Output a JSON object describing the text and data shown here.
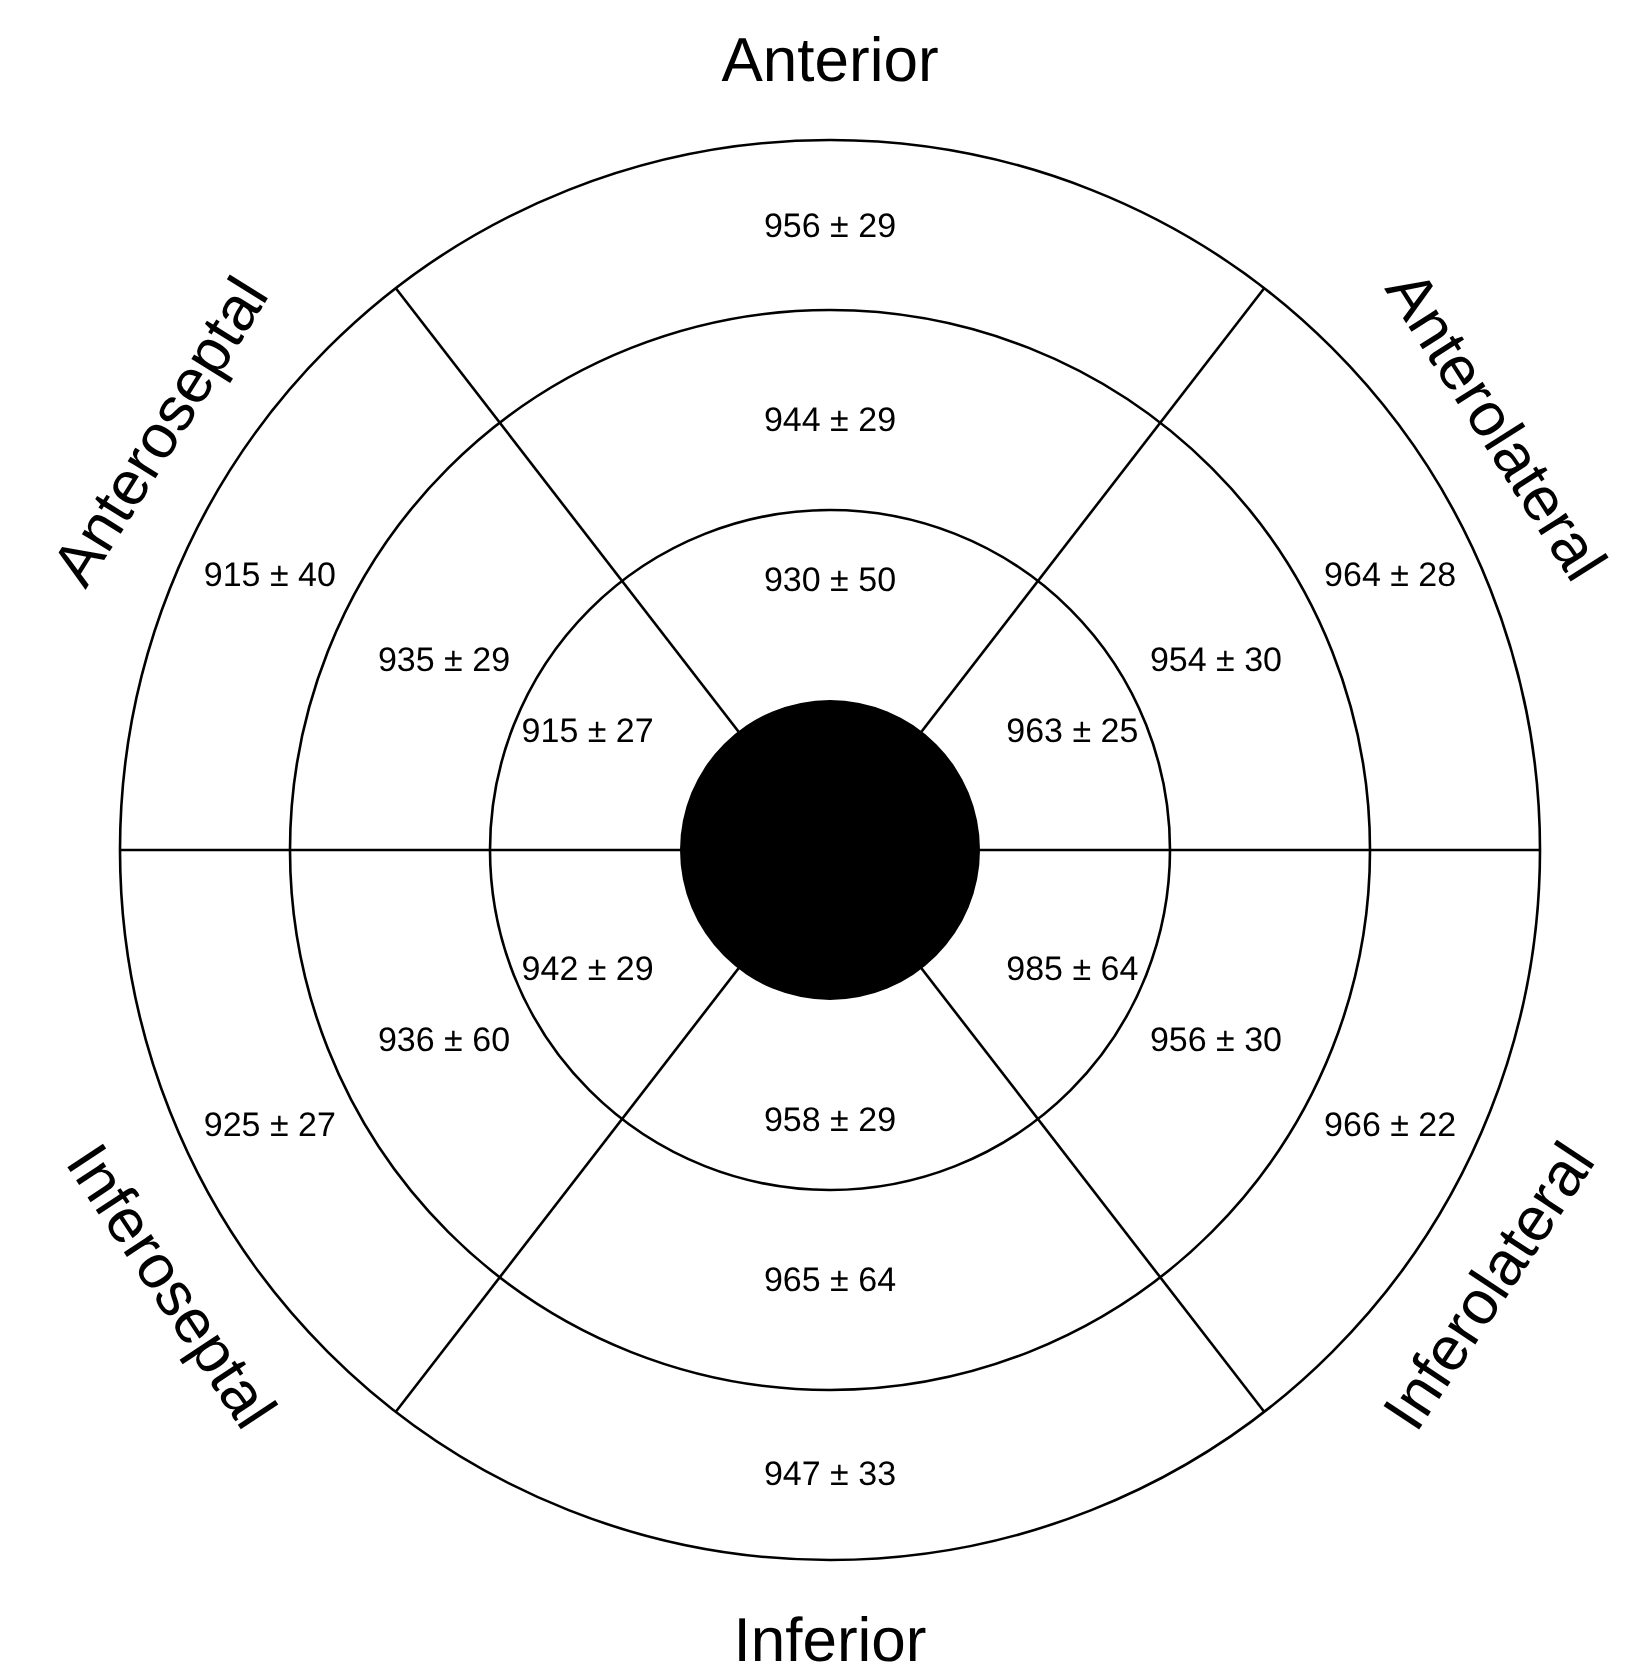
{
  "chart_data": {
    "type": "other",
    "categories": [
      "Anterior",
      "Anterolateral",
      "Inferolateral",
      "Inferior",
      "Inferoseptal",
      "Anteroseptal"
    ],
    "series": [
      {
        "values": [
          956,
          964,
          966,
          947,
          925,
          915
        ],
        "value_labels": [
          "956 ± 29",
          "964 ± 28",
          "966 ± 22",
          "947 ± 33",
          "925 ± 27",
          "915 ± 40"
        ]
      },
      {
        "values": [
          944,
          954,
          956,
          965,
          936,
          935
        ],
        "value_labels": [
          "944 ± 29",
          "954 ± 30",
          "956 ± 30",
          "965 ± 64",
          "936 ± 60",
          "935 ± 29"
        ]
      },
      {
        "values": [
          930,
          963,
          985,
          958,
          942,
          915
        ],
        "value_labels": [
          "930 ± 50",
          "963 ± 25",
          "985 ± 64",
          "958 ± 29",
          "942 ± 29",
          "915 ± 27"
        ]
      }
    ]
  }
}
